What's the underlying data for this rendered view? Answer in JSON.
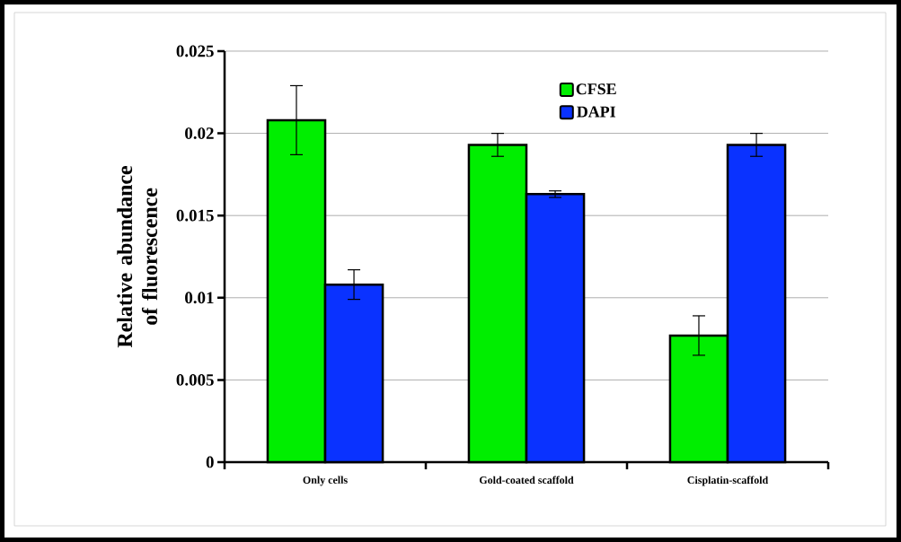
{
  "chart_data": {
    "type": "bar",
    "ylabel": "Relative abundance of fluorescence",
    "categories": [
      "Only cells",
      "Gold-coated scaffold",
      "Cisplatin-scaffold"
    ],
    "series": [
      {
        "name": "CFSE",
        "color": "#00ee00",
        "values": [
          0.0208,
          0.0193,
          0.0077
        ],
        "errors": [
          0.0021,
          0.0007,
          0.0012
        ]
      },
      {
        "name": "DAPI",
        "color": "#0a32ff",
        "values": [
          0.0108,
          0.0163,
          0.0193
        ],
        "errors": [
          0.0009,
          0.0002,
          0.0007
        ]
      }
    ],
    "ylim": [
      0,
      0.025
    ],
    "yticks": [
      0,
      0.005,
      0.01,
      0.015,
      0.02,
      0.025
    ],
    "grid": "y",
    "legend": "top"
  }
}
